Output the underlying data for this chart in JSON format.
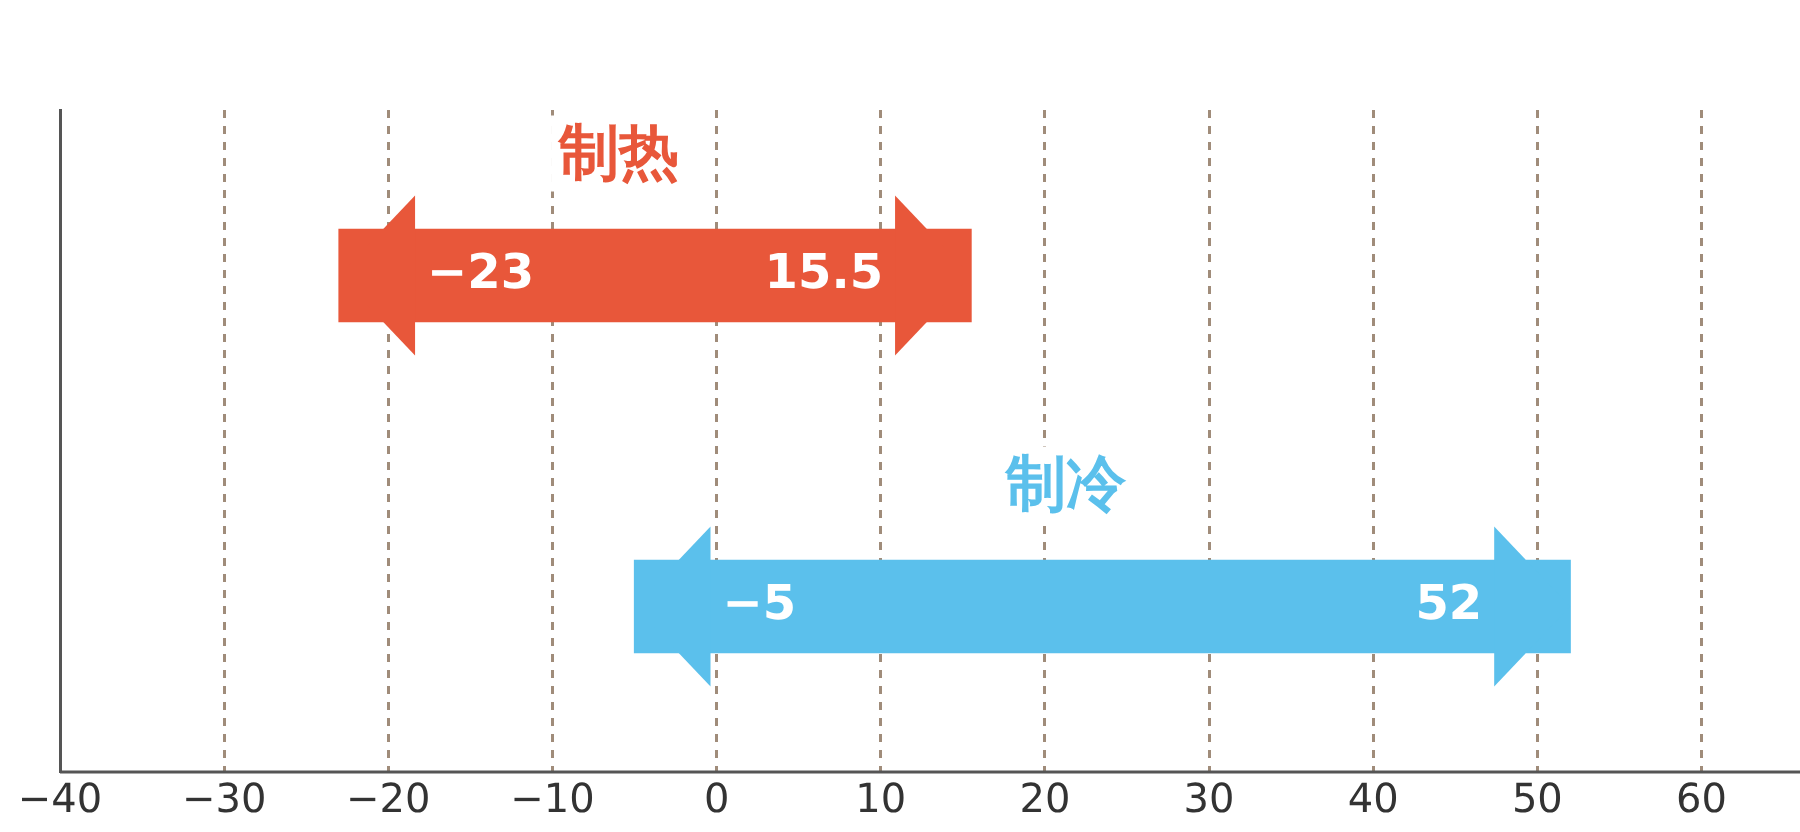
{
  "chart_data": {
    "type": "bar",
    "orientation": "horizontal",
    "categories": [
      "制热",
      "制冷"
    ],
    "values": [
      38.5,
      57
    ],
    "base": [
      -23,
      -5
    ],
    "colors": [
      "#e8573a",
      "#5bc0ec"
    ],
    "xlim": [
      -40,
      66
    ],
    "xticks": [
      {
        "value": -40,
        "label": "−40"
      },
      {
        "value": -30,
        "label": "−30"
      },
      {
        "value": -20,
        "label": "−20"
      },
      {
        "value": -10,
        "label": "−10"
      },
      0,
      10,
      20,
      30,
      40,
      50,
      60
    ],
    "grid": "x",
    "tick_labels": "x",
    "legend": false,
    "annotations": [
      {
        "text": "−23",
        "x": -23,
        "y": "制热"
      },
      {
        "text": "15.5",
        "x": 15.5,
        "y": "制热"
      },
      {
        "text": "−5",
        "x": -5,
        "y": "制冷"
      },
      {
        "text": "52",
        "x": 52,
        "y": "制冷"
      }
    ]
  }
}
